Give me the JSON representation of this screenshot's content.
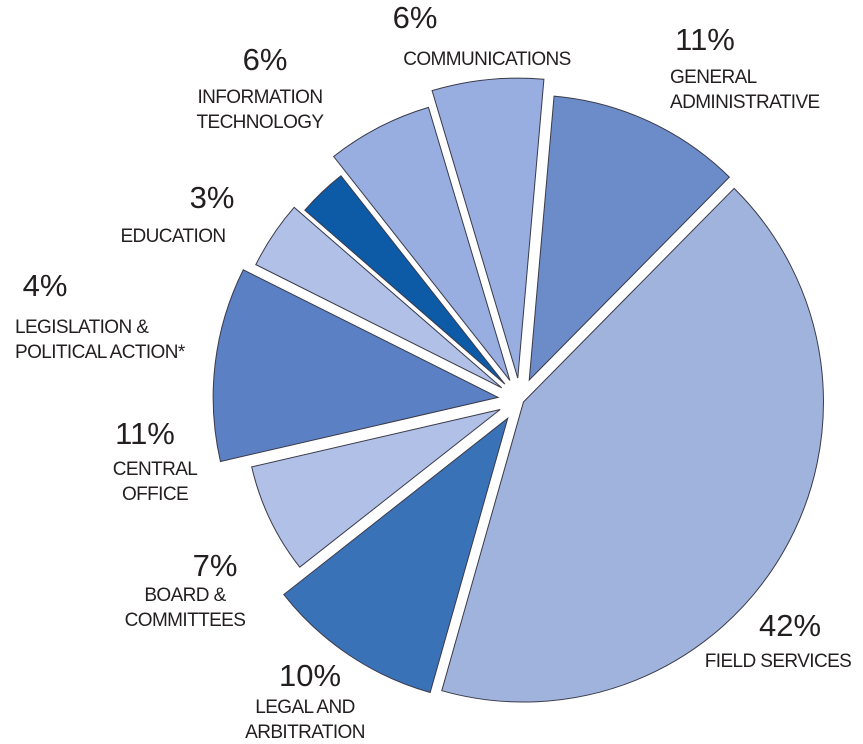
{
  "chart_data": {
    "type": "pie",
    "categories": [
      "GENERAL\nADMINISTRATIVE",
      "FIELD SERVICES",
      "LEGAL  AND\nARBITRATION",
      "BOARD &\nCOMMITTEES",
      "CENTRAL\nOFFICE",
      "LEGISLATION &\nPOLITICAL ACTION*",
      "EDUCATION",
      "INFORMATION\nTECHNOLOGY",
      "COMMUNICATIONS"
    ],
    "values": [
      11,
      42,
      10,
      7,
      11,
      4,
      3,
      6,
      6
    ],
    "value_labels": [
      "11%",
      "42%",
      "10%",
      "7%",
      "11%",
      "4%",
      "3%",
      "6%",
      "6%"
    ],
    "colors": [
      "#6b8cc8",
      "#a0b3dc",
      "#3a72b8",
      "#b0c0e6",
      "#5b80c3",
      "#b0c0e6",
      "#0d5aa7",
      "#98ade0",
      "#98ade0"
    ]
  }
}
